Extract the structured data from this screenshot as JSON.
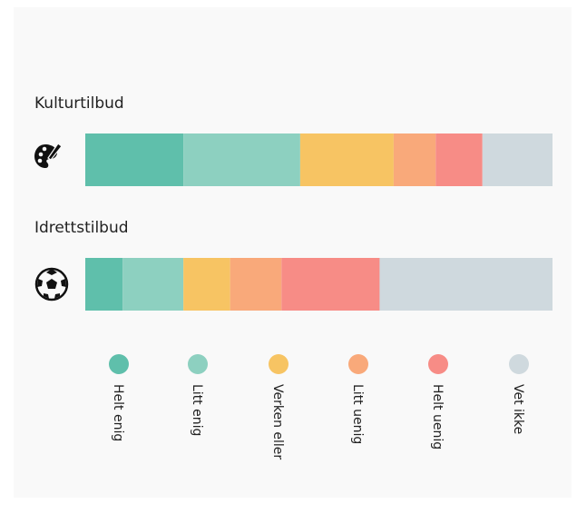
{
  "chart_data": {
    "type": "stacked-bar",
    "categories": [
      "Kulturtilbud",
      "Idrettstilbud"
    ],
    "series": [
      {
        "name": "Helt enig",
        "color": "#5fbfab",
        "values": [
          21,
          8
        ]
      },
      {
        "name": "Litt enig",
        "color": "#8dd0c0",
        "values": [
          25,
          13
        ]
      },
      {
        "name": "Verken eller",
        "color": "#f7c463",
        "values": [
          20,
          10
        ]
      },
      {
        "name": "Litt uenig",
        "color": "#f9a97a",
        "values": [
          9,
          11
        ]
      },
      {
        "name": "Helt uenig",
        "color": "#f78c86",
        "values": [
          10,
          21
        ]
      },
      {
        "name": "Vet ikke",
        "color": "#cfd9de",
        "values": [
          15,
          37
        ]
      }
    ],
    "xlim": [
      0,
      100
    ]
  }
}
